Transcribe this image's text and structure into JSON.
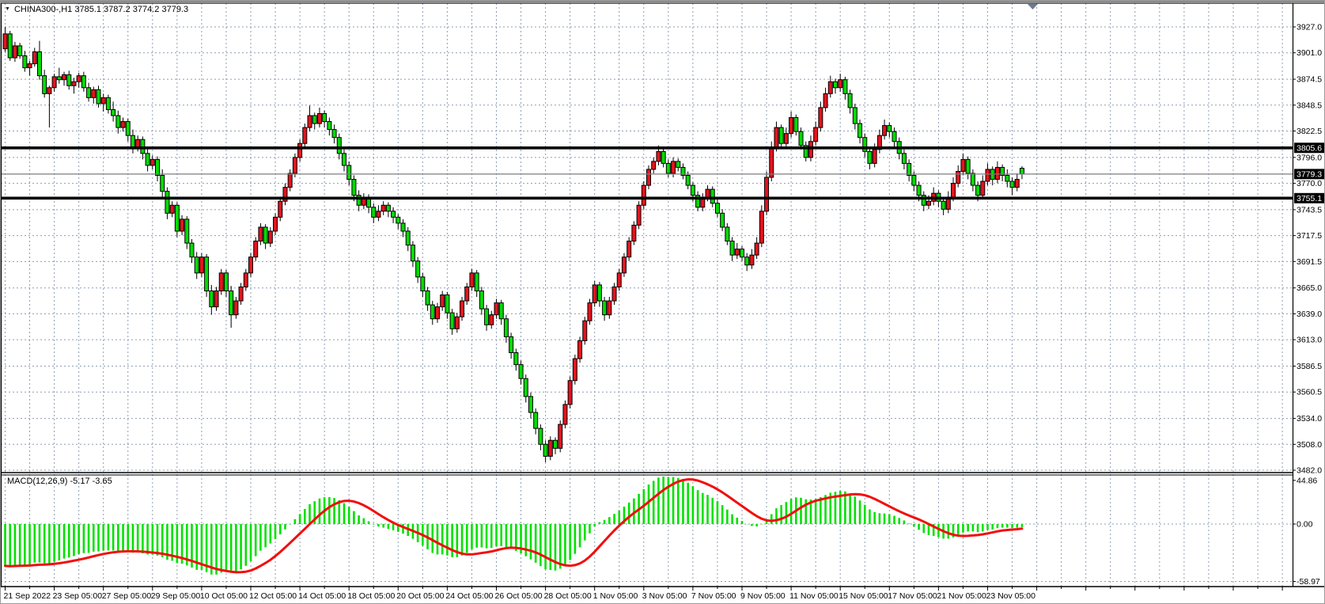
{
  "window_title": "CHINA300- H1 chart",
  "title": {
    "symbol": "CHINA300-,H1",
    "ohlc_text": "3785.1 3787.2 3774.2 3779.3"
  },
  "macd_label": {
    "name": "MACD(12,26,9)",
    "values": "-5.17 -3.65"
  },
  "colors": {
    "up_candle": "#e6131e",
    "down_candle": "#00dd00",
    "candle_border": "#000000",
    "macd_bar": "#00e100",
    "macd_signal": "#f20d0d",
    "grid": "#8e9cb2",
    "level_line": "#000000",
    "current_price_line": "#7c7c7c",
    "tag_bg": "#000000",
    "tag_text": "#ffffff",
    "axis_text": "#000000",
    "shift_marker": "#6e7b8c"
  },
  "chart_data": {
    "type": "candlestick_with_macd_panel",
    "title": "CHINA300-,H1 3785.1 3787.2 3774.2 3779.3",
    "legend_position": "none",
    "grid": "dashed",
    "x_labels": [
      "21 Sep 2022",
      "23 Sep 05:00",
      "27 Sep 05:00",
      "29 Sep 05:00",
      "10 Oct 05:00",
      "12 Oct 05:00",
      "14 Oct 05:00",
      "18 Oct 05:00",
      "20 Oct 05:00",
      "24 Oct 05:00",
      "26 Oct 05:00",
      "28 Oct 05:00",
      "1 Nov 05:00",
      "3 Nov 05:00",
      "7 Nov 05:00",
      "9 Nov 05:00",
      "11 Nov 05:00",
      "15 Nov 05:00",
      "17 Nov 05:00",
      "21 Nov 05:00",
      "23 Nov 05:00"
    ],
    "price_axis_ticks": [
      "3927.0",
      "3901.0",
      "3874.5",
      "3848.5",
      "3822.5",
      "3796.0",
      "3770.0",
      "3743.5",
      "3717.5",
      "3691.5",
      "3665.0",
      "3639.0",
      "3613.0",
      "3586.5",
      "3560.5",
      "3534.0",
      "3508.0",
      "3482.0"
    ],
    "price_ylim": [
      3482.0,
      3927.0
    ],
    "horizontal_level_lines": [
      3805.6,
      3755.1
    ],
    "current_price": 3779.3,
    "price_tags": [
      "3805.6",
      "3779.3",
      "3755.1"
    ],
    "tag_prices": [
      3805.6,
      3779.3,
      3755.1
    ],
    "macd_axis_ticks": [
      "44.86",
      "0.00",
      "-58.97"
    ],
    "macd_ylim": [
      -58.97,
      44.86
    ],
    "macd_params": [
      12,
      26,
      9
    ],
    "macd_current": [
      -5.17,
      -3.65
    ],
    "ohlc": [
      [
        3905,
        3927,
        3902,
        3920
      ],
      [
        3920,
        3923,
        3893,
        3896
      ],
      [
        3896,
        3912,
        3892,
        3908
      ],
      [
        3908,
        3911,
        3895,
        3898
      ],
      [
        3898,
        3903,
        3882,
        3886
      ],
      [
        3886,
        3893,
        3878,
        3890
      ],
      [
        3890,
        3906,
        3887,
        3902
      ],
      [
        3902,
        3913,
        3874,
        3878
      ],
      [
        3878,
        3884,
        3856,
        3860
      ],
      [
        3860,
        3868,
        3826,
        3866
      ],
      [
        3866,
        3880,
        3862,
        3877
      ],
      [
        3877,
        3886,
        3870,
        3874
      ],
      [
        3874,
        3882,
        3868,
        3879
      ],
      [
        3879,
        3883,
        3864,
        3868
      ],
      [
        3868,
        3876,
        3860,
        3872
      ],
      [
        3872,
        3881,
        3866,
        3878
      ],
      [
        3878,
        3882,
        3862,
        3866
      ],
      [
        3866,
        3871,
        3852,
        3856
      ],
      [
        3856,
        3867,
        3850,
        3864
      ],
      [
        3864,
        3868,
        3846,
        3850
      ],
      [
        3850,
        3860,
        3842,
        3856
      ],
      [
        3856,
        3859,
        3840,
        3844
      ],
      [
        3844,
        3852,
        3832,
        3838
      ],
      [
        3838,
        3843,
        3820,
        3826
      ],
      [
        3826,
        3836,
        3822,
        3832
      ],
      [
        3832,
        3835,
        3812,
        3818
      ],
      [
        3818,
        3824,
        3800,
        3806
      ],
      [
        3806,
        3818,
        3802,
        3814
      ],
      [
        3814,
        3817,
        3794,
        3800
      ],
      [
        3800,
        3805,
        3782,
        3788
      ],
      [
        3788,
        3798,
        3784,
        3794
      ],
      [
        3794,
        3797,
        3772,
        3778
      ],
      [
        3778,
        3784,
        3756,
        3762
      ],
      [
        3762,
        3766,
        3734,
        3740
      ],
      [
        3740,
        3752,
        3736,
        3748
      ],
      [
        3748,
        3751,
        3716,
        3722
      ],
      [
        3722,
        3738,
        3718,
        3734
      ],
      [
        3734,
        3737,
        3704,
        3710
      ],
      [
        3710,
        3714,
        3690,
        3696
      ],
      [
        3696,
        3701,
        3674,
        3680
      ],
      [
        3680,
        3700,
        3676,
        3696
      ],
      [
        3696,
        3699,
        3656,
        3662
      ],
      [
        3662,
        3668,
        3638,
        3646
      ],
      [
        3646,
        3666,
        3642,
        3662
      ],
      [
        3662,
        3684,
        3658,
        3680
      ],
      [
        3680,
        3683,
        3656,
        3662
      ],
      [
        3662,
        3667,
        3625,
        3638
      ],
      [
        3638,
        3656,
        3634,
        3652
      ],
      [
        3652,
        3670,
        3648,
        3666
      ],
      [
        3666,
        3684,
        3662,
        3680
      ],
      [
        3680,
        3700,
        3676,
        3696
      ],
      [
        3696,
        3716,
        3692,
        3712
      ],
      [
        3712,
        3730,
        3708,
        3726
      ],
      [
        3726,
        3729,
        3704,
        3710
      ],
      [
        3710,
        3726,
        3706,
        3722
      ],
      [
        3722,
        3740,
        3718,
        3736
      ],
      [
        3736,
        3756,
        3732,
        3752
      ],
      [
        3752,
        3770,
        3748,
        3766
      ],
      [
        3766,
        3784,
        3762,
        3780
      ],
      [
        3780,
        3800,
        3776,
        3796
      ],
      [
        3796,
        3814,
        3792,
        3810
      ],
      [
        3810,
        3830,
        3806,
        3826
      ],
      [
        3826,
        3848,
        3822,
        3838
      ],
      [
        3838,
        3841,
        3824,
        3830
      ],
      [
        3830,
        3846,
        3826,
        3840
      ],
      [
        3840,
        3843,
        3826,
        3832
      ],
      [
        3832,
        3836,
        3818,
        3824
      ],
      [
        3824,
        3829,
        3810,
        3816
      ],
      [
        3816,
        3820,
        3794,
        3800
      ],
      [
        3800,
        3804,
        3782,
        3788
      ],
      [
        3788,
        3792,
        3768,
        3774
      ],
      [
        3774,
        3778,
        3752,
        3758
      ],
      [
        3758,
        3763,
        3742,
        3748
      ],
      [
        3748,
        3760,
        3744,
        3756
      ],
      [
        3756,
        3759,
        3740,
        3746
      ],
      [
        3746,
        3750,
        3730,
        3736
      ],
      [
        3736,
        3748,
        3732,
        3742
      ],
      [
        3742,
        3752,
        3738,
        3748
      ],
      [
        3748,
        3751,
        3736,
        3742
      ],
      [
        3742,
        3746,
        3730,
        3736
      ],
      [
        3736,
        3739,
        3724,
        3730
      ],
      [
        3730,
        3734,
        3716,
        3722
      ],
      [
        3722,
        3726,
        3702,
        3708
      ],
      [
        3708,
        3712,
        3686,
        3692
      ],
      [
        3692,
        3696,
        3670,
        3676
      ],
      [
        3676,
        3680,
        3656,
        3662
      ],
      [
        3662,
        3666,
        3642,
        3648
      ],
      [
        3648,
        3652,
        3628,
        3634
      ],
      [
        3634,
        3650,
        3630,
        3646
      ],
      [
        3646,
        3662,
        3642,
        3658
      ],
      [
        3658,
        3661,
        3634,
        3640
      ],
      [
        3640,
        3644,
        3618,
        3624
      ],
      [
        3624,
        3640,
        3620,
        3636
      ],
      [
        3636,
        3656,
        3632,
        3652
      ],
      [
        3652,
        3670,
        3648,
        3666
      ],
      [
        3666,
        3684,
        3662,
        3680
      ],
      [
        3680,
        3683,
        3656,
        3662
      ],
      [
        3662,
        3666,
        3638,
        3644
      ],
      [
        3644,
        3648,
        3622,
        3628
      ],
      [
        3628,
        3642,
        3624,
        3638
      ],
      [
        3638,
        3654,
        3634,
        3650
      ],
      [
        3650,
        3653,
        3628,
        3634
      ],
      [
        3634,
        3638,
        3610,
        3616
      ],
      [
        3616,
        3620,
        3594,
        3600
      ],
      [
        3600,
        3604,
        3582,
        3588
      ],
      [
        3588,
        3592,
        3568,
        3574
      ],
      [
        3574,
        3578,
        3550,
        3556
      ],
      [
        3556,
        3560,
        3534,
        3540
      ],
      [
        3540,
        3544,
        3518,
        3524
      ],
      [
        3524,
        3528,
        3502,
        3508
      ],
      [
        3508,
        3512,
        3490,
        3496
      ],
      [
        3496,
        3516,
        3492,
        3512
      ],
      [
        3512,
        3515,
        3498,
        3504
      ],
      [
        3504,
        3532,
        3500,
        3528
      ],
      [
        3528,
        3552,
        3524,
        3548
      ],
      [
        3548,
        3576,
        3544,
        3572
      ],
      [
        3572,
        3598,
        3568,
        3594
      ],
      [
        3594,
        3616,
        3590,
        3612
      ],
      [
        3612,
        3636,
        3608,
        3632
      ],
      [
        3632,
        3654,
        3628,
        3650
      ],
      [
        3650,
        3672,
        3646,
        3668
      ],
      [
        3668,
        3671,
        3646,
        3652
      ],
      [
        3652,
        3656,
        3632,
        3638
      ],
      [
        3638,
        3656,
        3634,
        3652
      ],
      [
        3652,
        3670,
        3648,
        3666
      ],
      [
        3666,
        3684,
        3662,
        3680
      ],
      [
        3680,
        3700,
        3676,
        3696
      ],
      [
        3696,
        3716,
        3692,
        3712
      ],
      [
        3712,
        3732,
        3708,
        3728
      ],
      [
        3728,
        3752,
        3724,
        3748
      ],
      [
        3748,
        3772,
        3744,
        3768
      ],
      [
        3768,
        3788,
        3764,
        3784
      ],
      [
        3784,
        3796,
        3780,
        3792
      ],
      [
        3792,
        3808,
        3788,
        3802
      ],
      [
        3802,
        3805,
        3786,
        3790
      ],
      [
        3790,
        3794,
        3776,
        3780
      ],
      [
        3780,
        3796,
        3776,
        3792
      ],
      [
        3792,
        3795,
        3782,
        3786
      ],
      [
        3786,
        3790,
        3774,
        3778
      ],
      [
        3778,
        3782,
        3764,
        3768
      ],
      [
        3768,
        3771,
        3752,
        3758
      ],
      [
        3758,
        3762,
        3742,
        3746
      ],
      [
        3746,
        3760,
        3742,
        3756
      ],
      [
        3756,
        3768,
        3752,
        3764
      ],
      [
        3764,
        3767,
        3746,
        3750
      ],
      [
        3750,
        3754,
        3736,
        3740
      ],
      [
        3740,
        3744,
        3722,
        3726
      ],
      [
        3726,
        3730,
        3708,
        3712
      ],
      [
        3712,
        3716,
        3692,
        3698
      ],
      [
        3698,
        3710,
        3694,
        3704
      ],
      [
        3704,
        3707,
        3692,
        3696
      ],
      [
        3696,
        3700,
        3682,
        3688
      ],
      [
        3688,
        3704,
        3684,
        3698
      ],
      [
        3698,
        3716,
        3694,
        3710
      ],
      [
        3710,
        3748,
        3706,
        3742
      ],
      [
        3742,
        3782,
        3738,
        3776
      ],
      [
        3776,
        3812,
        3772,
        3806
      ],
      [
        3806,
        3832,
        3802,
        3826
      ],
      [
        3826,
        3829,
        3806,
        3810
      ],
      [
        3810,
        3826,
        3806,
        3820
      ],
      [
        3820,
        3842,
        3816,
        3836
      ],
      [
        3836,
        3839,
        3818,
        3822
      ],
      [
        3822,
        3826,
        3804,
        3808
      ],
      [
        3808,
        3812,
        3792,
        3796
      ],
      [
        3796,
        3818,
        3792,
        3812
      ],
      [
        3812,
        3832,
        3808,
        3826
      ],
      [
        3826,
        3852,
        3822,
        3846
      ],
      [
        3846,
        3866,
        3842,
        3860
      ],
      [
        3860,
        3878,
        3856,
        3872
      ],
      [
        3872,
        3875,
        3860,
        3866
      ],
      [
        3866,
        3880,
        3862,
        3874
      ],
      [
        3874,
        3877,
        3854,
        3860
      ],
      [
        3860,
        3864,
        3840,
        3846
      ],
      [
        3846,
        3850,
        3824,
        3830
      ],
      [
        3830,
        3834,
        3810,
        3816
      ],
      [
        3816,
        3820,
        3796,
        3802
      ],
      [
        3802,
        3806,
        3784,
        3790
      ],
      [
        3790,
        3810,
        3786,
        3804
      ],
      [
        3804,
        3824,
        3800,
        3818
      ],
      [
        3818,
        3834,
        3814,
        3828
      ],
      [
        3828,
        3831,
        3816,
        3822
      ],
      [
        3822,
        3826,
        3806,
        3812
      ],
      [
        3812,
        3816,
        3794,
        3800
      ],
      [
        3800,
        3804,
        3784,
        3790
      ],
      [
        3790,
        3794,
        3772,
        3778
      ],
      [
        3778,
        3782,
        3762,
        3768
      ],
      [
        3768,
        3772,
        3752,
        3758
      ],
      [
        3758,
        3762,
        3742,
        3748
      ],
      [
        3748,
        3758,
        3744,
        3752
      ],
      [
        3752,
        3766,
        3748,
        3760
      ],
      [
        3760,
        3763,
        3746,
        3752
      ],
      [
        3752,
        3756,
        3738,
        3744
      ],
      [
        3744,
        3762,
        3740,
        3756
      ],
      [
        3756,
        3776,
        3752,
        3770
      ],
      [
        3770,
        3788,
        3766,
        3782
      ],
      [
        3782,
        3800,
        3778,
        3794
      ],
      [
        3794,
        3797,
        3774,
        3780
      ],
      [
        3780,
        3784,
        3762,
        3768
      ],
      [
        3768,
        3772,
        3752,
        3758
      ],
      [
        3758,
        3778,
        3754,
        3772
      ],
      [
        3772,
        3790,
        3768,
        3784
      ],
      [
        3784,
        3787,
        3768,
        3774
      ],
      [
        3774,
        3792,
        3770,
        3786
      ],
      [
        3786,
        3789,
        3772,
        3778
      ],
      [
        3778,
        3784,
        3766,
        3772
      ],
      [
        3772,
        3776,
        3758,
        3766
      ],
      [
        3766,
        3780,
        3762,
        3774
      ],
      [
        3785.1,
        3787.2,
        3774.2,
        3779.3
      ]
    ]
  }
}
